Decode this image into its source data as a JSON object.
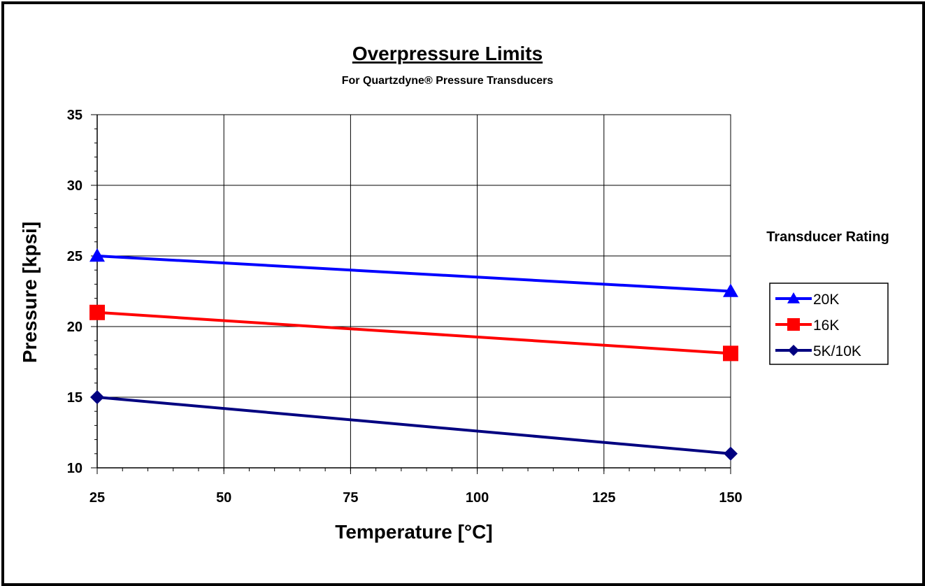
{
  "chart_data": {
    "type": "line",
    "title": "Overpressure Limits",
    "subtitle": "For Quartzdyne® Pressure Transducers",
    "xlabel": "Temperature [°C]",
    "ylabel": "Pressure [kpsi]",
    "xlim": [
      25,
      150
    ],
    "ylim": [
      10,
      35
    ],
    "x_ticks": [
      25,
      50,
      75,
      100,
      125,
      150
    ],
    "y_ticks": [
      10,
      15,
      20,
      25,
      30,
      35
    ],
    "grid": true,
    "legend": {
      "title": "Transducer Rating",
      "position": "right"
    },
    "series": [
      {
        "name": "20K",
        "x": [
          25,
          150
        ],
        "y": [
          25,
          22.5
        ],
        "color": "#0000ff",
        "marker": "triangle"
      },
      {
        "name": "16K",
        "x": [
          25,
          150
        ],
        "y": [
          21,
          18.1
        ],
        "color": "#ff0000",
        "marker": "square"
      },
      {
        "name": "5K/10K",
        "x": [
          25,
          150
        ],
        "y": [
          15,
          11
        ],
        "color": "#000080",
        "marker": "diamond"
      }
    ]
  }
}
